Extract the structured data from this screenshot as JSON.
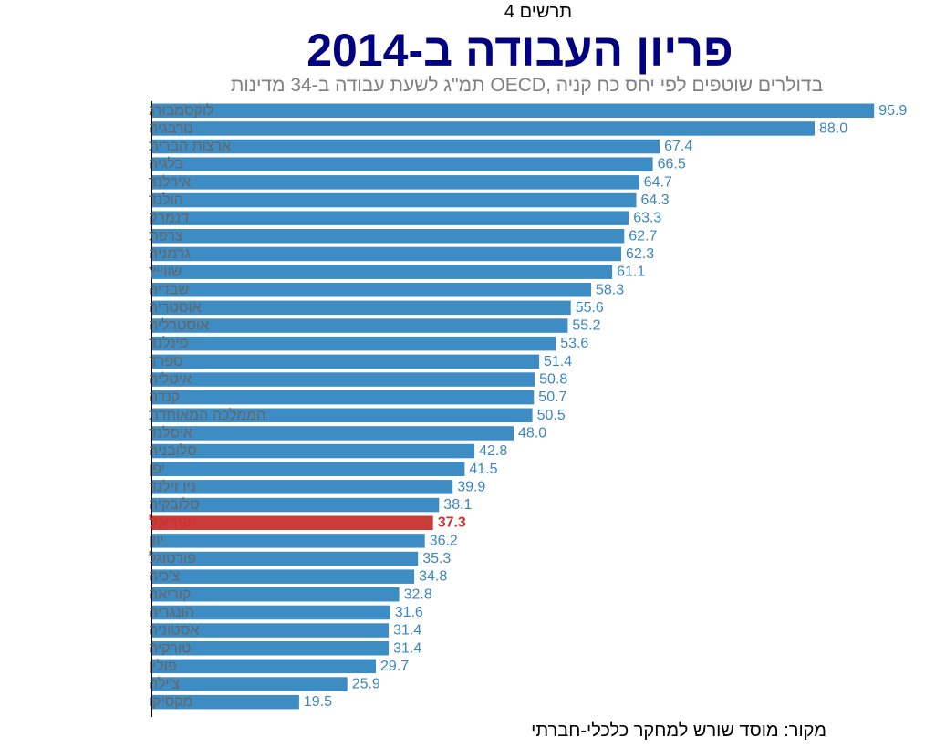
{
  "chart_data": {
    "type": "bar",
    "orientation": "horizontal",
    "label": "תרשים 4",
    "title": "פריון העבודה ב-2014",
    "subtitle": "תמ\"ג לשעת עבודה ב-34 מדינות OECD, בדולרים שוטפים לפי יחס כח קניה",
    "source": "מקור:  מוסד שורש למחקר כלכלי-חברתי",
    "categories": [
      "לוקסמבורג",
      "נורבגיה",
      "ארצות הברית",
      "בלגיה",
      "אירלנד",
      "הולנד",
      "דנמרק",
      "צרפת",
      "גרמניה",
      "שווייץ",
      "שבדיה",
      "אוסטריה",
      "אוסטרליה",
      "פינלנד",
      "ספרד",
      "איטליה",
      "קנדה",
      "הממלכה המאוחדת",
      "איסלנד",
      "סלובניה",
      "יפן",
      "ניו זילנד",
      "סלובקיה",
      "ישראל",
      "יוון",
      "פורטוגל",
      "צ'כיה",
      "קוריאה",
      "הונגריה",
      "אסטוניה",
      "טורקיה",
      "פולין",
      "צ'ילה",
      "מקסיקו"
    ],
    "values": [
      95.9,
      88.0,
      67.4,
      66.5,
      64.7,
      64.3,
      63.3,
      62.7,
      62.3,
      61.1,
      58.3,
      55.6,
      55.2,
      53.6,
      51.4,
      50.8,
      50.7,
      50.5,
      48.0,
      42.8,
      41.5,
      39.9,
      38.1,
      37.3,
      36.2,
      35.3,
      34.8,
      32.8,
      31.6,
      31.4,
      31.4,
      29.7,
      25.9,
      19.5
    ],
    "value_labels": [
      "95.9",
      "88.0",
      "67.4",
      "66.5",
      "64.7",
      "64.3",
      "63.3",
      "62.7",
      "62.3",
      "61.1",
      "58.3",
      "55.6",
      "55.2",
      "53.6",
      "51.4",
      "50.8",
      "50.7",
      "50.5",
      "48.0",
      "42.8",
      "41.5",
      "39.9",
      "38.1",
      "37.3",
      "36.2",
      "35.3",
      "34.8",
      "32.8",
      "31.6",
      "31.4",
      "31.4",
      "29.7",
      "25.9",
      "19.5"
    ],
    "highlight_category": "ישראל",
    "xlim": [
      0,
      100
    ],
    "grid": false,
    "colors": {
      "bar": "#3d8cc4",
      "highlight_bar": "#cc3b3b",
      "value_text": "#3a86c0",
      "highlight_text": "#cc3333",
      "category_text": "#666666",
      "title": "#000080",
      "subtitle": "#808080"
    }
  }
}
